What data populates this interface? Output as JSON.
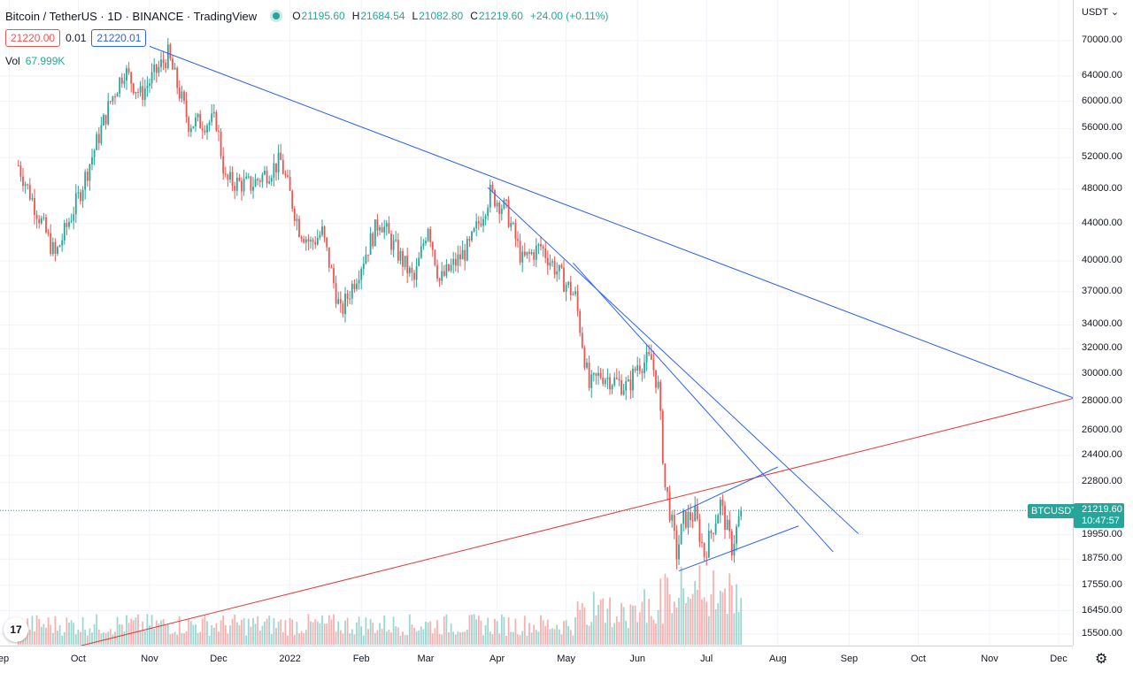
{
  "header": {
    "title": "Bitcoin / TetherUS · 1D · BINANCE · TradingView",
    "ohlc": {
      "o_label": "O",
      "o": "21195.60",
      "h_label": "H",
      "h": "21684.54",
      "l_label": "L",
      "l": "21082.80",
      "c_label": "C",
      "c": "21219.60",
      "change": "+24.00 (+0.11%)"
    },
    "sell_price": "21220.00",
    "spread": "0.01",
    "buy_price": "21220.01",
    "volume_label": "Vol",
    "volume_value": "67.999K"
  },
  "axis": {
    "currency": "USDT",
    "symbol_tag": "BTCUSDT",
    "last_price": "21219.60",
    "countdown": "10:47:57",
    "price_ticks": [
      "70000.00",
      "64000.00",
      "60000.00",
      "56000.00",
      "52000.00",
      "48000.00",
      "44000.00",
      "40000.00",
      "37000.00",
      "34000.00",
      "32000.00",
      "30000.00",
      "28000.00",
      "26000.00",
      "24400.00",
      "22800.00",
      "19950.00",
      "18750.00",
      "17550.00",
      "16450.00",
      "15500.00"
    ],
    "time_ticks": [
      "ep",
      "Oct",
      "Nov",
      "Dec",
      "2022",
      "Feb",
      "Mar",
      "Apr",
      "May",
      "Jun",
      "Jul",
      "Aug",
      "Sep",
      "Oct",
      "Nov",
      "Dec"
    ]
  },
  "colors": {
    "up": "#26a69a",
    "down": "#ef5350",
    "trendline": "#2962ff",
    "support": "#e53935",
    "grid": "#f0f3fa"
  },
  "icons": {
    "logo": "tradingview-logo-icon",
    "settings": "gear-icon",
    "status": "market-open-dot-icon"
  },
  "chart_data": {
    "type": "candlestick",
    "symbol": "BTCUSDT",
    "interval": "1D",
    "y_scale": "log",
    "ylim": [
      15000,
      74000
    ],
    "x_range": [
      "2021-08-28",
      "2022-12-31"
    ],
    "grid": true,
    "anchors": [
      {
        "date": "2021-09-05",
        "close": 51000
      },
      {
        "date": "2021-09-21",
        "close": 40500
      },
      {
        "date": "2021-10-01",
        "close": 47000
      },
      {
        "date": "2021-10-15",
        "close": 60000
      },
      {
        "date": "2021-10-21",
        "close": 65000
      },
      {
        "date": "2021-10-28",
        "close": 61000
      },
      {
        "date": "2021-11-09",
        "close": 67500
      },
      {
        "date": "2021-11-18",
        "close": 56800
      },
      {
        "date": "2021-11-30",
        "close": 57000
      },
      {
        "date": "2021-12-04",
        "close": 49000
      },
      {
        "date": "2021-12-15",
        "close": 48500
      },
      {
        "date": "2021-12-28",
        "close": 51500
      },
      {
        "date": "2022-01-05",
        "close": 43500
      },
      {
        "date": "2022-01-10",
        "close": 41800
      },
      {
        "date": "2022-01-15",
        "close": 43000
      },
      {
        "date": "2022-01-23",
        "close": 35000
      },
      {
        "date": "2022-02-09",
        "close": 44500
      },
      {
        "date": "2022-02-14",
        "close": 42000
      },
      {
        "date": "2022-02-24",
        "close": 38000
      },
      {
        "date": "2022-03-02",
        "close": 44000
      },
      {
        "date": "2022-03-07",
        "close": 38000
      },
      {
        "date": "2022-03-20",
        "close": 41500
      },
      {
        "date": "2022-03-29",
        "close": 47500
      },
      {
        "date": "2022-04-05",
        "close": 45500
      },
      {
        "date": "2022-04-12",
        "close": 40000
      },
      {
        "date": "2022-04-20",
        "close": 41500
      },
      {
        "date": "2022-04-30",
        "close": 38000
      },
      {
        "date": "2022-05-05",
        "close": 36500
      },
      {
        "date": "2022-05-11",
        "close": 29000
      },
      {
        "date": "2022-05-16",
        "close": 30000
      },
      {
        "date": "2022-05-28",
        "close": 29000
      },
      {
        "date": "2022-06-01",
        "close": 30800
      },
      {
        "date": "2022-06-07",
        "close": 31100
      },
      {
        "date": "2022-06-10",
        "close": 29000
      },
      {
        "date": "2022-06-13",
        "close": 22500
      },
      {
        "date": "2022-06-14",
        "close": 22000
      },
      {
        "date": "2022-06-18",
        "close": 19000
      },
      {
        "date": "2022-06-21",
        "close": 20700
      },
      {
        "date": "2022-06-26",
        "close": 21000
      },
      {
        "date": "2022-06-30",
        "close": 19000
      },
      {
        "date": "2022-07-07",
        "close": 21600
      },
      {
        "date": "2022-07-12",
        "close": 19300
      },
      {
        "date": "2022-07-16",
        "close": 21219.6
      }
    ],
    "trendlines": [
      {
        "color": "blue",
        "from": {
          "date": "2021-11-01",
          "price": 69000
        },
        "to": {
          "date": "2022-12-31",
          "price": 26800
        }
      },
      {
        "color": "blue",
        "from": {
          "date": "2022-03-28",
          "price": 48200
        },
        "to": {
          "date": "2022-09-05",
          "price": 20000
        }
      },
      {
        "color": "blue",
        "from": {
          "date": "2022-05-04",
          "price": 39800
        },
        "to": {
          "date": "2022-08-25",
          "price": 19100
        }
      },
      {
        "color": "red",
        "from": {
          "date": "2021-09-30",
          "price": 15000
        },
        "to": {
          "date": "2022-12-31",
          "price": 29200
        }
      },
      {
        "color": "blue",
        "from": {
          "date": "2022-06-18",
          "price": 21000
        },
        "to": {
          "date": "2022-08-01",
          "price": 23700
        }
      },
      {
        "color": "blue",
        "from": {
          "date": "2022-06-19",
          "price": 18200
        },
        "to": {
          "date": "2022-08-10",
          "price": 20400
        }
      }
    ]
  }
}
